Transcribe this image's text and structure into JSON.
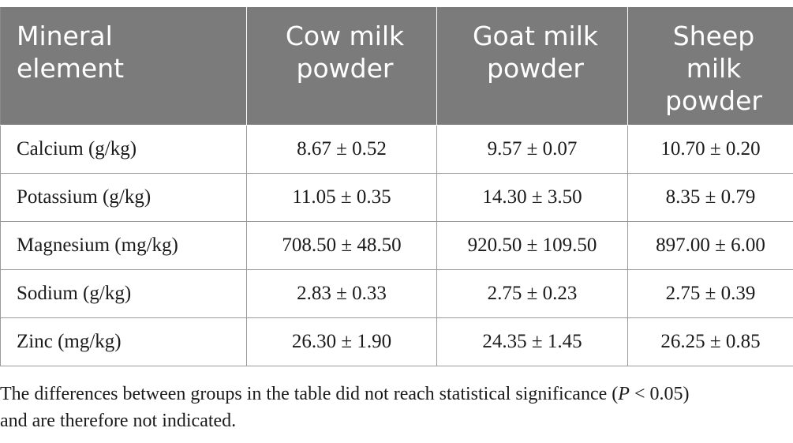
{
  "table": {
    "headers": [
      {
        "line1": "Mineral",
        "line2": "element",
        "line3": ""
      },
      {
        "line1": "Cow milk",
        "line2": "powder",
        "line3": ""
      },
      {
        "line1": "Goat milk",
        "line2": "powder",
        "line3": ""
      },
      {
        "line1": "Sheep",
        "line2": "milk",
        "line3": "powder"
      }
    ],
    "rows": [
      {
        "mineral": "Calcium (g/kg)",
        "cow": "8.67 ± 0.52",
        "goat": "9.57 ± 0.07",
        "sheep": "10.70 ± 0.20"
      },
      {
        "mineral": "Potassium (g/kg)",
        "cow": "11.05 ± 0.35",
        "goat": "14.30 ± 3.50",
        "sheep": "8.35 ± 0.79"
      },
      {
        "mineral": "Magnesium (mg/kg)",
        "cow": "708.50 ± 48.50",
        "goat": "920.50 ± 109.50",
        "sheep": "897.00 ± 6.00"
      },
      {
        "mineral": "Sodium (g/kg)",
        "cow": "2.83 ± 0.33",
        "goat": "2.75 ± 0.23",
        "sheep": "2.75 ± 0.39"
      },
      {
        "mineral": "Zinc (mg/kg)",
        "cow": "26.30 ± 1.90",
        "goat": "24.35 ± 1.45",
        "sheep": "26.25 ± 0.85"
      }
    ]
  },
  "footnote": {
    "text_before": "The differences between groups in the table did not reach statistical significance (",
    "p_symbol": "P",
    "text_after_line1": " < 0.05)",
    "line2": "and are therefore not indicated."
  }
}
